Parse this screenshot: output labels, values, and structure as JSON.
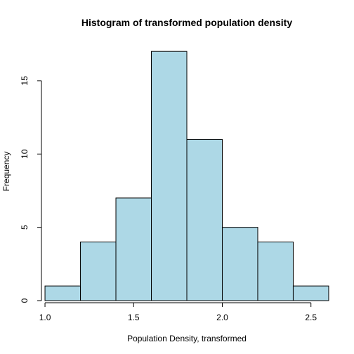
{
  "chart_data": {
    "type": "bar",
    "title": "Histogram of transformed population density",
    "xlabel": "Population Density, transformed",
    "ylabel": "Frequency",
    "bin_edges": [
      1.0,
      1.2,
      1.4,
      1.6,
      1.8,
      2.0,
      2.2,
      2.4,
      2.6
    ],
    "values": [
      1,
      4,
      7,
      17,
      11,
      5,
      4,
      1
    ],
    "xlim": [
      0.98,
      2.62
    ],
    "ylim": [
      0,
      17.68
    ],
    "x_ticks": [
      1.0,
      1.5,
      2.0,
      2.5
    ],
    "x_tick_labels": [
      "1.0",
      "1.5",
      "2.0",
      "2.5"
    ],
    "y_ticks": [
      0,
      5,
      10,
      15
    ],
    "y_tick_labels": [
      "0",
      "5",
      "10",
      "15"
    ],
    "bar_color": "#add8e6",
    "grid": false,
    "legend": "none"
  }
}
